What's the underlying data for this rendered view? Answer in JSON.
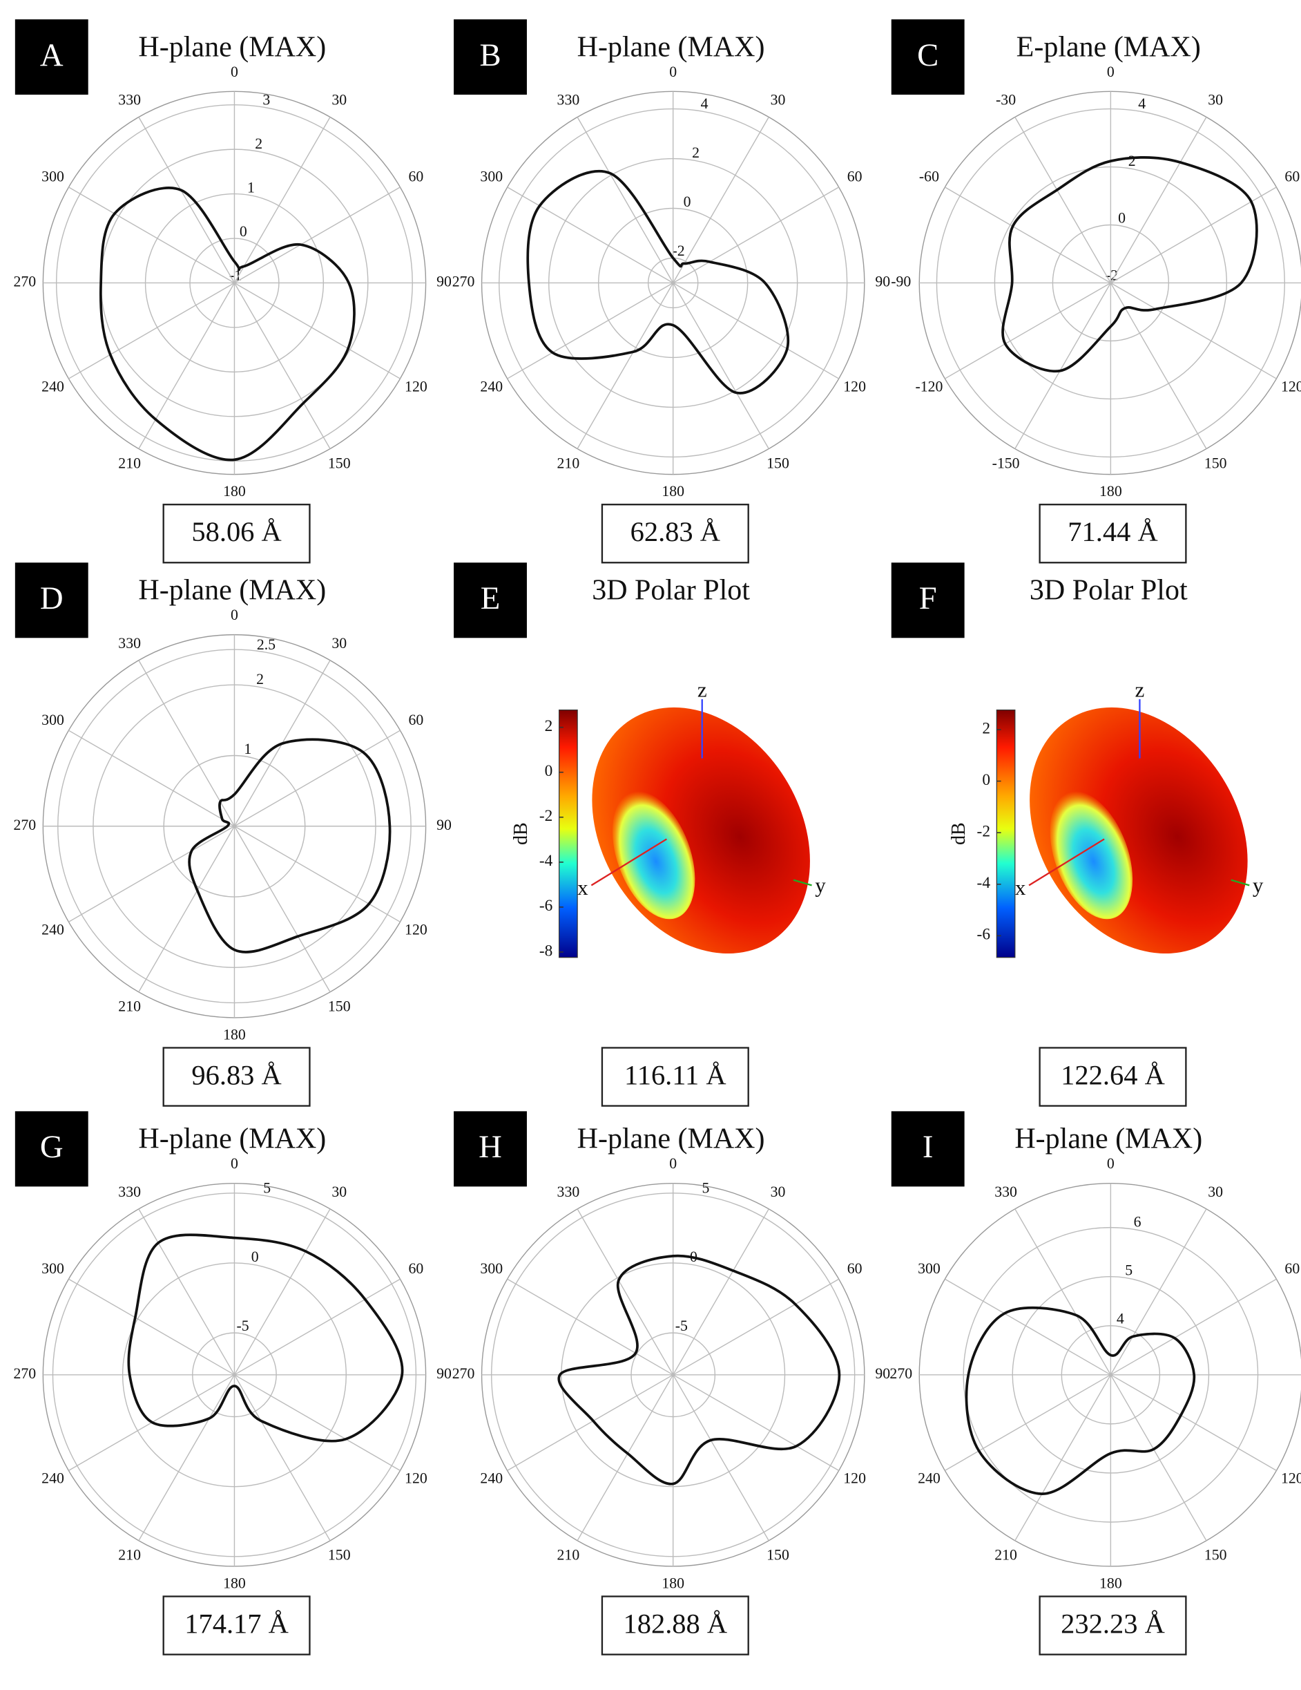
{
  "chart_data": [
    {
      "type": "polar",
      "label": "A",
      "title": "H-plane (MAX)",
      "caption": "58.06 Å",
      "thetaticks": [
        0,
        30,
        60,
        90,
        120,
        150,
        180,
        210,
        240,
        270,
        300,
        330
      ],
      "rlim": [
        -1,
        3.3
      ],
      "rticks": [
        -1,
        0,
        1,
        2,
        3
      ],
      "theta": [
        0,
        30,
        60,
        90,
        120,
        150,
        180,
        210,
        240,
        270,
        300,
        330
      ],
      "values": [
        -0.52,
        -0.57,
        0.72,
        1.57,
        1.95,
        2.11,
        2.97,
        2.54,
        2.22,
        2.0,
        2.11,
        1.41
      ]
    },
    {
      "type": "polar",
      "label": "B",
      "title": "H-plane (MAX)",
      "caption": "62.83 Å",
      "thetaticks": [
        0,
        30,
        60,
        90,
        120,
        150,
        180,
        210,
        240,
        270,
        300,
        330
      ],
      "rlim": [
        -3,
        4.7
      ],
      "rticks": [
        -2,
        0,
        2,
        4
      ],
      "theta": [
        0,
        30,
        60,
        90,
        120,
        150,
        180,
        210,
        240,
        270,
        300,
        330
      ],
      "values": [
        -2.0,
        -2.1,
        -1.3,
        0.7,
        2.3,
        2.1,
        -1.3,
        0.2,
        2.6,
        2.8,
        3.2,
        2.1
      ]
    },
    {
      "type": "polar",
      "label": "C",
      "title": "E-plane (MAX)",
      "caption": "71.44 Å",
      "thetaticks": [
        0,
        30,
        60,
        90,
        120,
        150,
        180,
        -150,
        -120,
        -90,
        -60,
        -30
      ],
      "rlim": [
        -2,
        4.6
      ],
      "rticks": [
        -2,
        0,
        2,
        4
      ],
      "theta": [
        0,
        30,
        60,
        90,
        120,
        150,
        180,
        210,
        240,
        270,
        300,
        330
      ],
      "values": [
        2.2,
        2.8,
        3.6,
        2.5,
        -0.2,
        -1.0,
        -0.5,
        1.5,
        2.2,
        1.4,
        1.9,
        1.7
      ]
    },
    {
      "type": "polar",
      "label": "D",
      "title": "H-plane (MAX)",
      "caption": "96.83 Å",
      "thetaticks": [
        0,
        30,
        60,
        90,
        120,
        150,
        180,
        210,
        240,
        270,
        300,
        330
      ],
      "rlim": [
        0,
        2.71
      ],
      "rticks": [
        1,
        2,
        2.5
      ],
      "theta": [
        0,
        30,
        60,
        90,
        120,
        150,
        180,
        210,
        240,
        270,
        300,
        330
      ],
      "values": [
        0.45,
        1.35,
        2.1,
        2.2,
        2.2,
        1.8,
        1.75,
        1.05,
        0.7,
        0.1,
        0.2,
        0.4
      ]
    },
    {
      "type": "surface3d",
      "label": "E",
      "title": "3D Polar Plot",
      "caption": "116.11 Å",
      "colorbar_label": "dB",
      "axis_labels": [
        "x",
        "y",
        "z"
      ],
      "ylim": [
        -8.24,
        2.77
      ],
      "yticks": [
        2,
        0,
        -2,
        -4,
        -6,
        -8
      ]
    },
    {
      "type": "surface3d",
      "label": "F",
      "title": "3D Polar Plot",
      "caption": "122.64 Å",
      "colorbar_label": "dB",
      "axis_labels": [
        "x",
        "y",
        "z"
      ],
      "ylim": [
        -6.84,
        2.76
      ],
      "yticks": [
        2,
        0,
        -2,
        -4,
        -6
      ]
    },
    {
      "type": "polar",
      "label": "G",
      "title": "H-plane (MAX)",
      "caption": "174.17 Å",
      "thetaticks": [
        0,
        30,
        60,
        90,
        120,
        150,
        180,
        210,
        240,
        270,
        300,
        330
      ],
      "rlim": [
        -8,
        5.7
      ],
      "rticks": [
        -5,
        0,
        5
      ],
      "theta": [
        0,
        30,
        60,
        90,
        120,
        150,
        180,
        210,
        240,
        270,
        300,
        330
      ],
      "values": [
        1.8,
        2.2,
        2.8,
        4.0,
        1.2,
        -4.2,
        -7.2,
        -4.4,
        -1.2,
        -0.5,
        0.2,
        2.9
      ]
    },
    {
      "type": "polar",
      "label": "H",
      "title": "H-plane (MAX)",
      "caption": "182.88 Å",
      "thetaticks": [
        0,
        30,
        60,
        90,
        120,
        150,
        180,
        210,
        240,
        270,
        300,
        330
      ],
      "rlim": [
        -8,
        5.7
      ],
      "rticks": [
        -5,
        0,
        5
      ],
      "theta": [
        0,
        30,
        60,
        90,
        120,
        150,
        180,
        210,
        240,
        270,
        300,
        330
      ],
      "values": [
        0.5,
        0.6,
        2.1,
        3.9,
        2.2,
        -2.6,
        -0.2,
        -1.5,
        -1.4,
        0.1,
        -4.9,
        -0.2
      ]
    },
    {
      "type": "polar",
      "label": "I",
      "title": "H-plane (MAX)",
      "caption": "232.23 Å",
      "thetaticks": [
        0,
        30,
        60,
        90,
        120,
        150,
        180,
        210,
        240,
        270,
        300,
        330
      ],
      "rlim": [
        3,
        6.9
      ],
      "rticks": [
        4,
        5,
        6
      ],
      "theta": [
        0,
        30,
        60,
        90,
        120,
        150,
        180,
        210,
        240,
        270,
        300,
        330
      ],
      "values": [
        3.4,
        3.9,
        4.5,
        4.7,
        4.65,
        4.75,
        4.6,
        5.8,
        6.1,
        5.9,
        5.5,
        4.4
      ]
    }
  ]
}
